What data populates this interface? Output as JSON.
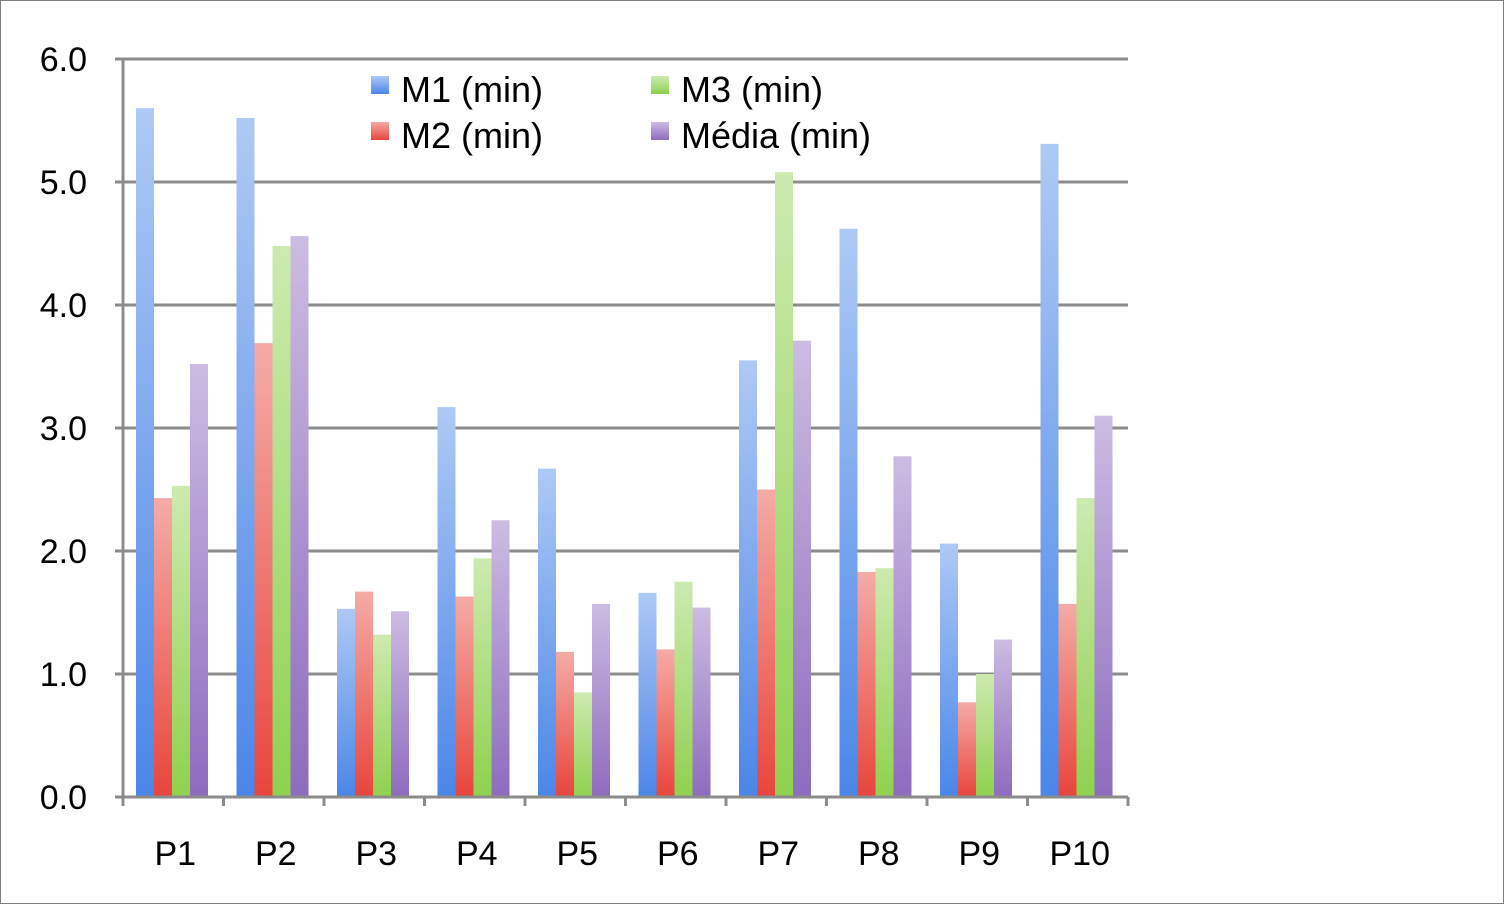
{
  "chart_data": {
    "type": "bar",
    "categories": [
      "P1",
      "P2",
      "P3",
      "P4",
      "P5",
      "P6",
      "P7",
      "P8",
      "P9",
      "P10"
    ],
    "series": [
      {
        "name": "M1 (min)",
        "color": "#4a86e8",
        "values": [
          5.6,
          5.52,
          1.53,
          3.17,
          2.67,
          1.66,
          3.55,
          4.62,
          2.06,
          5.31
        ]
      },
      {
        "name": "M2 (min)",
        "color": "#e8453c",
        "values": [
          2.43,
          3.69,
          1.67,
          1.63,
          1.18,
          1.2,
          2.5,
          1.83,
          0.77,
          1.57
        ]
      },
      {
        "name": "M3 (min)",
        "color": "#8fd14f",
        "values": [
          2.53,
          4.48,
          1.32,
          1.94,
          0.85,
          1.75,
          5.08,
          1.86,
          1.0,
          2.43
        ]
      },
      {
        "name": "Média (min)",
        "color": "#8e6bbf",
        "values": [
          3.52,
          4.56,
          1.51,
          2.25,
          1.57,
          1.54,
          3.71,
          2.77,
          1.28,
          3.1
        ]
      }
    ],
    "y_ticks": [
      "0.0",
      "1.0",
      "2.0",
      "3.0",
      "4.0",
      "5.0",
      "6.0"
    ],
    "ylim": [
      0,
      6
    ],
    "title": "",
    "xlabel": "",
    "ylabel": "",
    "grid": true,
    "legend": "top-center"
  }
}
